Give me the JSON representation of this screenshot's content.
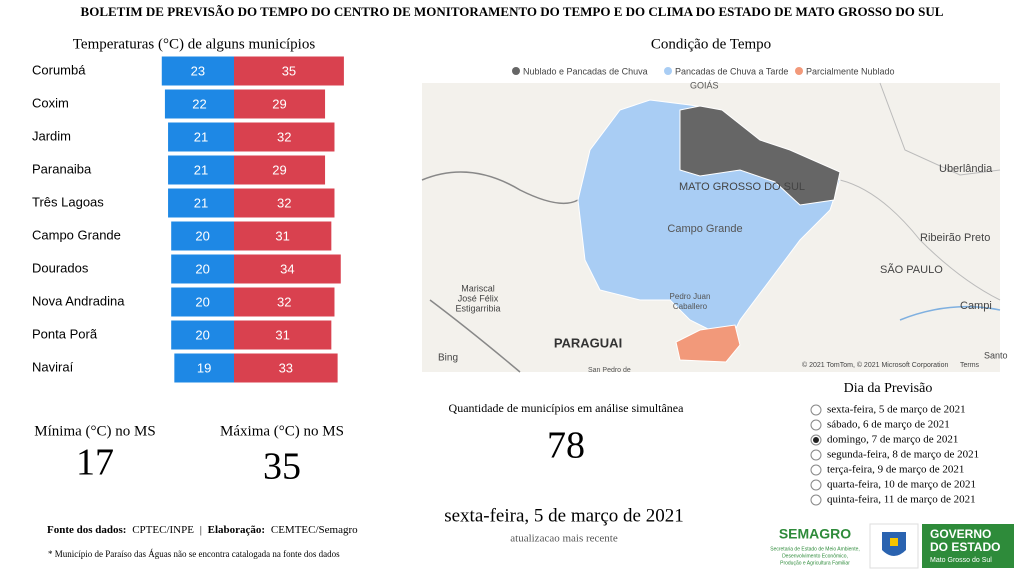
{
  "header": {
    "title": "BOLETIM DE PREVISÃO DO TEMPO DO CENTRO DE MONITORAMENTO DO TEMPO E DO CLIMA DO ESTADO DE MATO GROSSO DO SUL"
  },
  "chart_data": {
    "type": "bar",
    "title": "Temperaturas (°C) de alguns municípios",
    "categories": [
      "Corumbá",
      "Coxim",
      "Jardim",
      "Paranaiba",
      "Três Lagoas",
      "Campo Grande",
      "Dourados",
      "Nova Andradina",
      "Ponta Porã",
      "Naviraí"
    ],
    "series": [
      {
        "color": "#1e88e5",
        "values": [
          23,
          22,
          21,
          21,
          21,
          20,
          20,
          20,
          20,
          19
        ]
      },
      {
        "color": "#d9414f",
        "values": [
          35,
          29,
          32,
          29,
          32,
          31,
          34,
          32,
          31,
          33
        ]
      }
    ]
  },
  "stats": {
    "min_label": "Mínima (°C) no MS",
    "min_value": 17,
    "max_label": "Máxima (°C) no MS",
    "max_value": 35,
    "count_label": "Quantidade de municípios em análise simultânea",
    "count_value": 78,
    "date": "sexta-feira, 5 de março de 2021",
    "date_note": "atualizacao mais recente"
  },
  "footer": {
    "source_label": "Fonte dos dados:",
    "source": "CPTEC/INPE",
    "separator": "|",
    "elab_label": "Elaboração:",
    "elab": "CEMTEC/Semagro",
    "note": "* Município de Paraíso das Águas não se encontra catalogada na fonte dos dados"
  },
  "map": {
    "title": "Condição de Tempo",
    "legend": [
      {
        "label": "Nublado e Pancadas de Chuva",
        "color": "#666666"
      },
      {
        "label": "Pancadas de Chuva a Tarde",
        "color": "#a9cdf4"
      },
      {
        "label": "Parcialmente Nublado",
        "color": "#f2997a"
      }
    ],
    "labels": [
      "GOIÁS",
      "MATO GROSSO DO SUL",
      "Campo Grande",
      "Uberlândia",
      "Ribeirão Preto",
      "SÃO PAULO",
      "Campi",
      "Mariscal",
      "José Félix",
      "Estigarribia",
      "Pedro Juan",
      "Caballero",
      "PARAGUAI",
      "Bing",
      "© 2021 TomTom, © 2021 Microsoft Corporation",
      "Terms",
      "San Pedro de",
      "Santo"
    ]
  },
  "day_selector": {
    "title": "Dia da Previsão",
    "selected": 2,
    "options": [
      "sexta-feira, 5 de março de 2021",
      "sábado, 6 de março de 2021",
      "domingo, 7 de março de 2021",
      "segunda-feira, 8 de março de 2021",
      "terça-feira, 9 de março de 2021",
      "quarta-feira, 10 de março de 2021",
      "quinta-feira, 11 de março de 2021"
    ]
  },
  "logos": {
    "semagro": "SEMAGRO",
    "semagro_sub_1": "Secretaria de Estado de Meio Ambiente,",
    "semagro_sub_2": "Desenvolvimento Econômico,",
    "semagro_sub_3": "Produção e Agricultura Familiar",
    "gov_1": "GOVERNO",
    "gov_2": "DO ESTADO",
    "gov_3": "Mato Grosso do Sul"
  }
}
